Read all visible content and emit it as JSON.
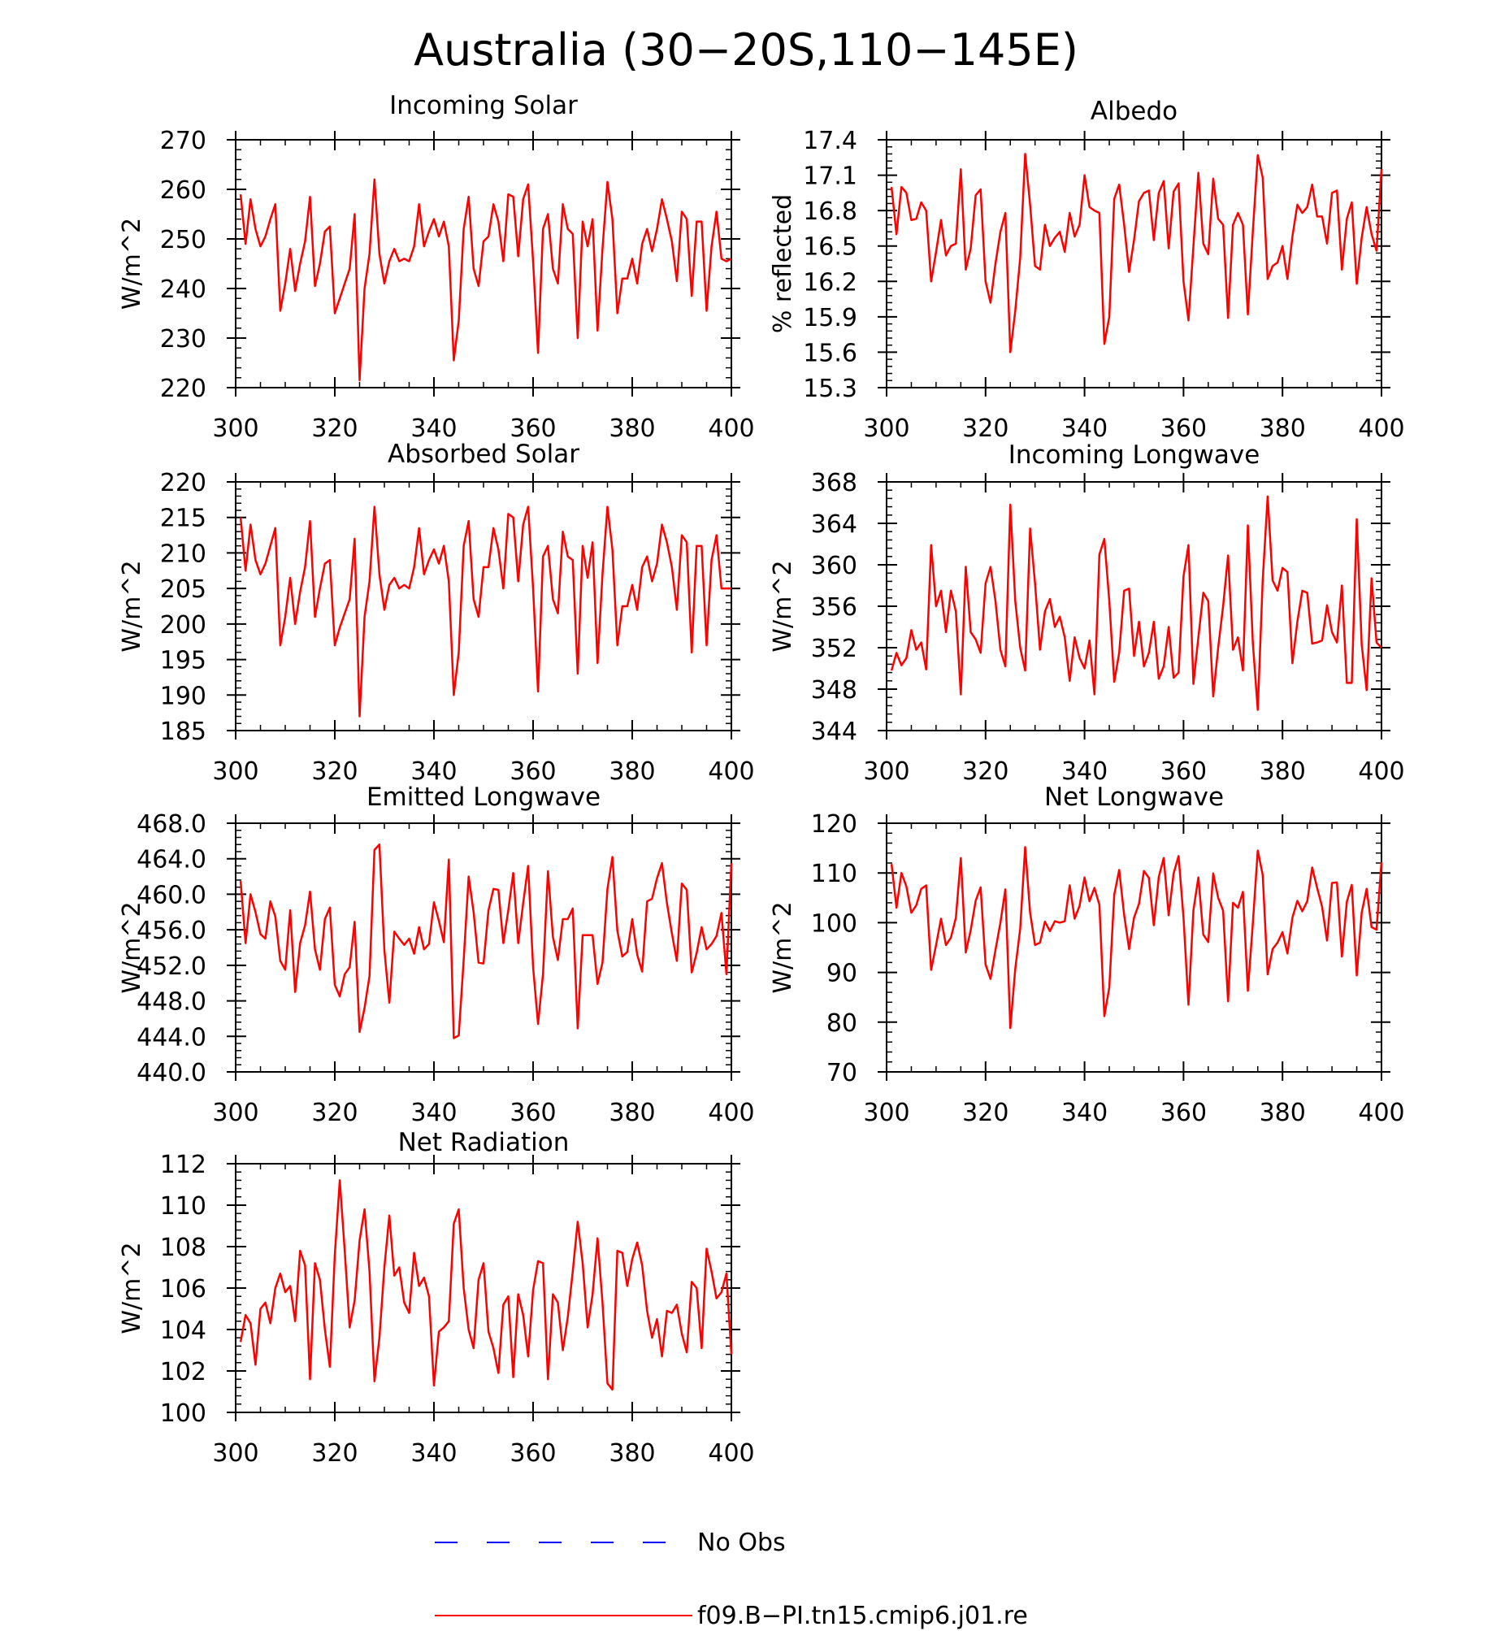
{
  "figure": {
    "title": "Australia (30−20S,110−145E)",
    "line_color": "#ff0000",
    "obs_color": "#0000ff"
  },
  "legend": {
    "items": [
      {
        "label": "No Obs",
        "color": "#0000ff",
        "style": "dashed"
      },
      {
        "label": "f09.B−PI.tn15.cmip6.j01.re",
        "color": "#ff0000",
        "style": "solid"
      }
    ]
  },
  "chart_data": [
    {
      "type": "line",
      "title": "Incoming Solar",
      "ylabel": "W/m^2",
      "xlim": [
        300,
        400
      ],
      "ylim": [
        220,
        270
      ],
      "xticks": [
        300,
        320,
        340,
        360,
        380,
        400
      ],
      "xtick_labels": [
        "300",
        "320",
        "340",
        "360",
        "380",
        "400"
      ],
      "yticks": [
        220,
        230,
        240,
        250,
        260,
        270
      ],
      "ytick_labels": [
        "220",
        "230",
        "240",
        "250",
        "260",
        "270"
      ],
      "x_start": 301,
      "values": [
        259,
        249,
        258,
        252,
        248.5,
        250.5,
        254,
        257,
        235.5,
        241,
        248,
        239.5,
        245,
        249.5,
        258.5,
        240.5,
        245,
        251.5,
        252.5,
        235,
        238,
        241,
        244,
        255,
        221.5,
        240,
        247,
        262,
        247,
        241,
        245.5,
        248,
        245.5,
        246,
        245.5,
        248.5,
        257,
        248.5,
        251.5,
        254,
        250.5,
        253.5,
        248.5,
        225.5,
        233.5,
        252,
        258.5,
        244,
        240.5,
        249.5,
        250.5,
        257,
        253.5,
        245.5,
        259,
        258.5,
        246.5,
        258,
        261,
        245.5,
        227,
        252,
        255,
        244,
        241,
        257,
        252,
        251,
        230,
        253.5,
        248.5,
        254,
        231.5,
        248,
        261.5,
        254,
        235,
        242,
        242,
        246,
        241,
        249,
        252,
        247.5,
        252,
        258,
        254,
        249.5,
        241.5,
        255.5,
        254,
        238.5,
        253.5,
        253.5,
        235.5,
        248.5,
        255.5,
        246,
        245.5,
        246
      ]
    },
    {
      "type": "line",
      "title": "Albedo",
      "ylabel": "% reflected",
      "xlim": [
        300,
        400
      ],
      "ylim": [
        15.3,
        17.4
      ],
      "xticks": [
        300,
        320,
        340,
        360,
        380,
        400
      ],
      "xtick_labels": [
        "300",
        "320",
        "340",
        "360",
        "380",
        "400"
      ],
      "yticks": [
        15.3,
        15.6,
        15.9,
        16.2,
        16.5,
        16.8,
        17.1,
        17.4
      ],
      "ytick_labels": [
        "15.3",
        "15.6",
        "15.9",
        "16.2",
        "16.5",
        "16.8",
        "17.1",
        "17.4"
      ],
      "x_start": 301,
      "values": [
        17.0,
        16.6,
        17.0,
        16.95,
        16.72,
        16.73,
        16.87,
        16.8,
        16.2,
        16.45,
        16.72,
        16.42,
        16.5,
        16.52,
        17.15,
        16.3,
        16.48,
        16.93,
        16.98,
        16.2,
        16.02,
        16.35,
        16.62,
        16.78,
        15.6,
        15.95,
        16.4,
        17.28,
        16.85,
        16.33,
        16.3,
        16.68,
        16.5,
        16.57,
        16.62,
        16.45,
        16.78,
        16.58,
        16.68,
        17.1,
        16.83,
        16.8,
        16.78,
        15.67,
        15.9,
        16.9,
        17.02,
        16.68,
        16.28,
        16.55,
        16.88,
        16.95,
        16.97,
        16.55,
        16.95,
        17.05,
        16.48,
        16.96,
        17.03,
        16.2,
        15.87,
        16.5,
        17.12,
        16.52,
        16.43,
        17.07,
        16.73,
        16.68,
        15.89,
        16.68,
        16.78,
        16.68,
        15.92,
        16.62,
        17.27,
        17.08,
        16.22,
        16.33,
        16.36,
        16.5,
        16.22,
        16.58,
        16.85,
        16.78,
        16.83,
        17.02,
        16.75,
        16.75,
        16.52,
        16.95,
        16.97,
        16.3,
        16.73,
        16.87,
        16.18,
        16.57,
        16.83,
        16.6,
        16.46,
        17.15
      ]
    },
    {
      "type": "line",
      "title": "Absorbed Solar",
      "ylabel": "W/m^2",
      "xlim": [
        300,
        400
      ],
      "ylim": [
        185,
        220
      ],
      "xticks": [
        300,
        320,
        340,
        360,
        380,
        400
      ],
      "xtick_labels": [
        "300",
        "320",
        "340",
        "360",
        "380",
        "400"
      ],
      "yticks": [
        185,
        190,
        195,
        200,
        205,
        210,
        215,
        220
      ],
      "ytick_labels": [
        "185",
        "190",
        "195",
        "200",
        "205",
        "210",
        "215",
        "220"
      ],
      "x_start": 301,
      "values": [
        215,
        207.5,
        214,
        209,
        207,
        208.5,
        211,
        213.5,
        197,
        201,
        206.5,
        200,
        204.5,
        208,
        214.5,
        201,
        205,
        208.5,
        209,
        197,
        199.5,
        201.5,
        203.5,
        212,
        187,
        201,
        206,
        216.5,
        207,
        202,
        205.5,
        206.5,
        205,
        205.5,
        205,
        208,
        213.5,
        207,
        209,
        210.5,
        208.5,
        211,
        206,
        190,
        196,
        211,
        214.5,
        203.5,
        201,
        208,
        208,
        213.5,
        210.5,
        205,
        215.5,
        215,
        206,
        214,
        216.5,
        205,
        190.5,
        209.5,
        211,
        203.5,
        201.5,
        213,
        209.5,
        209,
        193,
        211,
        206.5,
        211.5,
        194.5,
        207,
        216.5,
        210.5,
        197,
        202.5,
        202.5,
        205.5,
        202,
        208,
        209.5,
        206,
        208.5,
        214,
        211.5,
        208,
        202,
        212.5,
        211.5,
        196,
        211,
        211,
        197,
        209,
        212.5,
        205,
        205,
        205
      ]
    },
    {
      "type": "line",
      "title": "Incoming Longwave",
      "ylabel": "W/m^2",
      "xlim": [
        300,
        400
      ],
      "ylim": [
        344,
        368
      ],
      "xticks": [
        300,
        320,
        340,
        360,
        380,
        400
      ],
      "xtick_labels": [
        "300",
        "320",
        "340",
        "360",
        "380",
        "400"
      ],
      "yticks": [
        344,
        348,
        352,
        356,
        360,
        364,
        368
      ],
      "ytick_labels": [
        "344",
        "348",
        "352",
        "356",
        "360",
        "364",
        "368"
      ],
      "x_start": 301,
      "values": [
        349.8,
        351.5,
        350.3,
        351,
        353.7,
        351.8,
        352.5,
        349.9,
        361.9,
        356,
        357.5,
        353.5,
        357.5,
        355.5,
        347.5,
        359.8,
        353.5,
        352.8,
        351.5,
        358.2,
        359.8,
        356.5,
        351.8,
        350.2,
        365.8,
        356.5,
        352,
        349.8,
        363.5,
        358.2,
        351.8,
        355.5,
        356.7,
        354,
        355,
        353,
        348.8,
        353,
        351,
        350,
        352.7,
        347.5,
        361,
        362.5,
        356.5,
        348.7,
        351.5,
        357.5,
        357.7,
        351.2,
        354.5,
        350.2,
        351.5,
        354.5,
        349,
        350.2,
        354,
        349.1,
        349.6,
        358.9,
        361.9,
        348.5,
        353,
        357.3,
        356.5,
        347.3,
        352,
        356,
        360.9,
        351.8,
        353,
        349.8,
        363.8,
        352.5,
        346,
        358.5,
        366.6,
        358.5,
        357.5,
        359.7,
        359.3,
        350.5,
        354.5,
        357.5,
        357.3,
        352.4,
        352.5,
        352.7,
        356.1,
        353.5,
        352.5,
        358,
        348.6,
        348.6,
        364.4,
        352.3,
        347.9,
        358.7,
        352.5,
        352
      ]
    },
    {
      "type": "line",
      "title": "Emitted Longwave",
      "ylabel": "W/m^2",
      "xlim": [
        300,
        400
      ],
      "ylim": [
        440,
        468
      ],
      "xticks": [
        300,
        320,
        340,
        360,
        380,
        400
      ],
      "xtick_labels": [
        "300",
        "320",
        "340",
        "360",
        "380",
        "400"
      ],
      "yticks": [
        440,
        444,
        448,
        452,
        456,
        460,
        464,
        468
      ],
      "ytick_labels": [
        "440.0",
        "444.0",
        "448.0",
        "452.0",
        "456.0",
        "460.0",
        "464.0",
        "468.0"
      ],
      "x_start": 301,
      "values": [
        461.5,
        454.5,
        460,
        458,
        455.5,
        455,
        459.2,
        457.5,
        452.5,
        451.5,
        458.2,
        449,
        454.5,
        456.5,
        460.3,
        453.8,
        451.5,
        457.2,
        458.5,
        449.8,
        448.5,
        451,
        451.8,
        456.9,
        444.5,
        447.2,
        450.8,
        465,
        465.6,
        453.7,
        447.8,
        455.8,
        455,
        454.3,
        455,
        453.3,
        456.3,
        453.8,
        454.4,
        459.1,
        457,
        454.6,
        463.9,
        443.8,
        444.1,
        452.6,
        462,
        458,
        452.3,
        452.2,
        458.2,
        460.6,
        460.5,
        454.5,
        458.2,
        462.4,
        454.5,
        459,
        463.2,
        451.8,
        445.4,
        451,
        462.6,
        455.2,
        452.6,
        457.2,
        457.2,
        458.4,
        444.9,
        455.4,
        455.4,
        455.4,
        449.9,
        452.3,
        460.6,
        464.2,
        455.9,
        453,
        453.5,
        457.2,
        453.2,
        451.3,
        459.2,
        459.5,
        461.8,
        463.5,
        459,
        455.6,
        452.5,
        461.2,
        460.5,
        451.2,
        453.4,
        456.3,
        453.8,
        454.4,
        455.3,
        457.9,
        451,
        463.5
      ]
    },
    {
      "type": "line",
      "title": "Net Longwave",
      "ylabel": "W/m^2",
      "xlim": [
        300,
        400
      ],
      "ylim": [
        70,
        120
      ],
      "xticks": [
        300,
        320,
        340,
        360,
        380,
        400
      ],
      "xtick_labels": [
        "300",
        "320",
        "340",
        "360",
        "380",
        "400"
      ],
      "yticks": [
        70,
        80,
        90,
        100,
        110,
        120
      ],
      "ytick_labels": [
        "70",
        "80",
        "90",
        "100",
        "110",
        "120"
      ],
      "x_start": 301,
      "values": [
        111.8,
        103,
        110,
        107.3,
        102,
        103.5,
        106.8,
        107.5,
        90.5,
        95.5,
        100.8,
        95.5,
        97,
        101,
        113,
        94,
        98.5,
        104.4,
        107.1,
        91.6,
        88.7,
        94.5,
        100,
        106.7,
        78.8,
        90.7,
        98.8,
        115.2,
        102,
        95.5,
        96,
        100.2,
        98.3,
        100.3,
        100,
        100.3,
        107.5,
        100.8,
        103.4,
        109.1,
        104.3,
        107,
        103.6,
        81.2,
        87,
        105.6,
        110.6,
        101.6,
        94.7,
        101,
        103.8,
        110.4,
        109,
        99.5,
        109.2,
        113,
        101.5,
        109.9,
        113.4,
        101,
        83.5,
        102.5,
        109.1,
        97.6,
        96.1,
        109.9,
        105,
        102.4,
        84.2,
        104,
        103,
        106.2,
        86.3,
        99.8,
        114.5,
        109.6,
        89.6,
        94.7,
        96,
        98.1,
        93.8,
        101,
        104.4,
        102.3,
        104.3,
        111.1,
        107,
        103.2,
        96.4,
        108,
        108.1,
        93.2,
        104.2,
        107.6,
        89.4,
        102,
        106.8,
        99.1,
        98.6,
        112.2
      ]
    },
    {
      "type": "line",
      "title": "Net Radiation",
      "ylabel": "W/m^2",
      "xlim": [
        300,
        400
      ],
      "ylim": [
        100,
        112
      ],
      "xticks": [
        300,
        320,
        340,
        360,
        380,
        400
      ],
      "xtick_labels": [
        "300",
        "320",
        "340",
        "360",
        "380",
        "400"
      ],
      "yticks": [
        100,
        102,
        104,
        106,
        108,
        110,
        112
      ],
      "ytick_labels": [
        "100",
        "102",
        "104",
        "106",
        "108",
        "110",
        "112"
      ],
      "x_start": 301,
      "values": [
        103.4,
        104.7,
        104.3,
        102.3,
        105,
        105.3,
        104.3,
        106,
        106.7,
        105.8,
        106.1,
        104.4,
        107.8,
        107.1,
        101.6,
        107.2,
        106.4,
        104,
        102.2,
        107.6,
        111.2,
        107.8,
        104.1,
        105.4,
        108.3,
        109.8,
        106.8,
        101.5,
        103.6,
        107,
        109.5,
        106.6,
        107,
        105.3,
        104.8,
        107.7,
        106.1,
        106.5,
        105.6,
        101.3,
        103.9,
        104.1,
        104.4,
        109.1,
        109.8,
        106,
        104,
        103.1,
        106.4,
        107.2,
        103.9,
        103.1,
        101.9,
        105.2,
        105.6,
        101.7,
        105.7,
        104.7,
        102.7,
        105.9,
        107.3,
        107.2,
        101.6,
        105.7,
        105.3,
        103,
        104.6,
        106.8,
        109.2,
        107.2,
        104.1,
        105.7,
        108.4,
        105.3,
        101.4,
        101.1,
        107.8,
        107.7,
        106.1,
        107.4,
        108.2,
        107.1,
        104.9,
        103.6,
        104.5,
        102.7,
        104.9,
        104.8,
        105.2,
        103.8,
        102.9,
        106.3,
        106,
        103.1,
        107.9,
        106.8,
        105.5,
        105.8,
        106.7,
        102.8
      ]
    }
  ]
}
